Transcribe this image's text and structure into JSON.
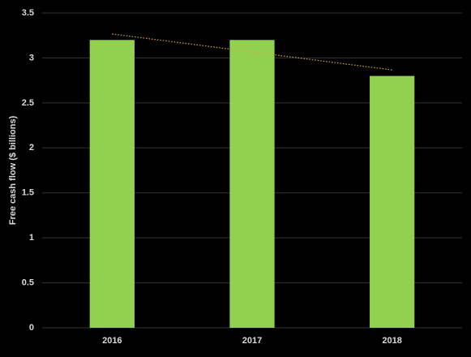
{
  "chart_data": {
    "type": "bar",
    "y_label": "Free cash flow ($ billions)",
    "categories": [
      "2016",
      "2017",
      "2018"
    ],
    "values": [
      3.2,
      3.2,
      2.8
    ],
    "color": "#92d050",
    "ylim": [
      0,
      3.5
    ],
    "yticks": [
      0,
      0.5,
      1,
      1.5,
      2,
      2.5,
      3,
      3.5
    ],
    "grid": true,
    "trendline": "linear",
    "trendline_color": "#d9a53a"
  }
}
